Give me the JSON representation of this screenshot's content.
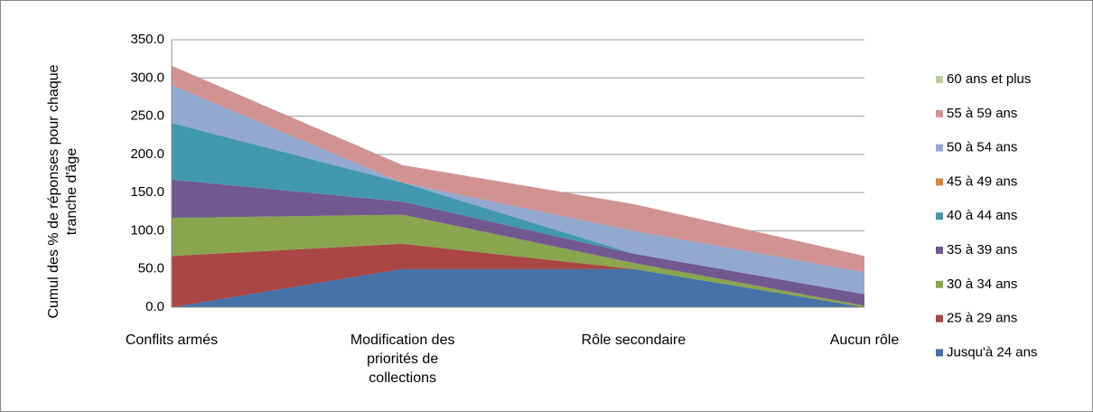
{
  "chart_data": {
    "type": "stacked_area",
    "y_label": "Cumul des % de réponses pour chaque tranche d'âge",
    "categories": [
      "Conflits armés",
      "Modification des priorités de collections",
      "Rôle secondaire",
      "Aucun rôle"
    ],
    "ylim": [
      0,
      350
    ],
    "yticks": [
      {
        "value": 0,
        "label": "0.0"
      },
      {
        "value": 50,
        "label": "50.0"
      },
      {
        "value": 100,
        "label": "100.0"
      },
      {
        "value": 150,
        "label": "150.0"
      },
      {
        "value": 200,
        "label": "200.0"
      },
      {
        "value": 250,
        "label": "250.0"
      },
      {
        "value": 300,
        "label": "300.0"
      },
      {
        "value": 350,
        "label": "350.0"
      }
    ],
    "grid": true,
    "legend": "right",
    "series": [
      {
        "name": "Jusqu'à 24 ans",
        "color": "#4572a7",
        "values": [
          0,
          50,
          50,
          0
        ]
      },
      {
        "name": "25 à 29 ans",
        "color": "#aa4643",
        "values": [
          67,
          33,
          0,
          0
        ]
      },
      {
        "name": "30 à 34 ans",
        "color": "#89a54e",
        "values": [
          50,
          38,
          8,
          2
        ]
      },
      {
        "name": "35 à 39 ans",
        "color": "#71588f",
        "values": [
          50,
          17,
          12,
          15
        ]
      },
      {
        "name": "40 à 44 ans",
        "color": "#4198af",
        "values": [
          74,
          25,
          0,
          0
        ]
      },
      {
        "name": "45 à 49 ans",
        "color": "#db843d",
        "values": [
          0,
          0,
          0,
          0
        ]
      },
      {
        "name": "50 à 54 ans",
        "color": "#93a9cf",
        "values": [
          50,
          0,
          30,
          29
        ]
      },
      {
        "name": "55 à 59 ans",
        "color": "#d19392",
        "values": [
          25,
          23,
          35,
          21
        ]
      },
      {
        "name": "60 ans et plus",
        "color": "#b9cd96",
        "values": [
          0,
          0,
          0,
          0
        ]
      }
    ]
  }
}
